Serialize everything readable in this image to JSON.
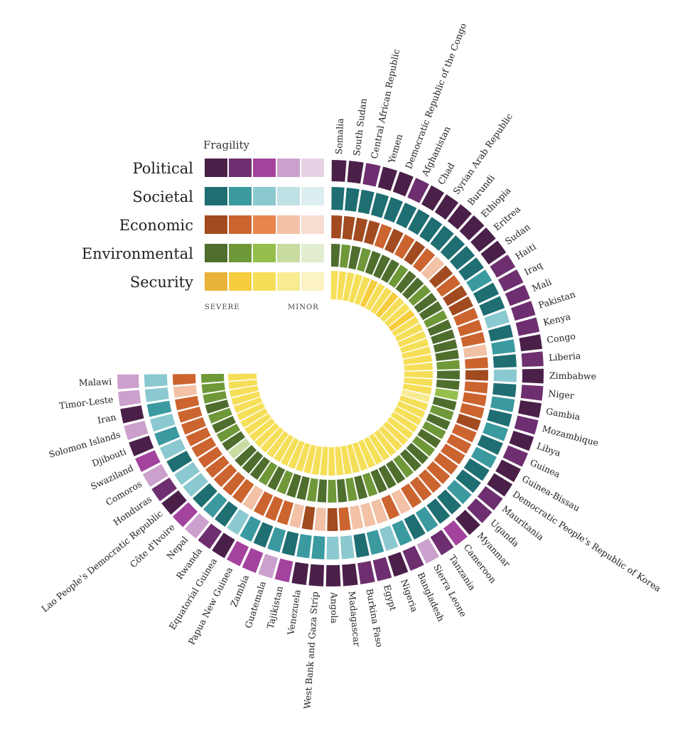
{
  "legend": {
    "title": "Fragility",
    "severe_label": "SEVERE",
    "minor_label": "MINOR",
    "rows": [
      {
        "name": "Political",
        "colors": [
          "#4a2049",
          "#6e2f70",
          "#a3439d",
          "#cca0cc",
          "#e6d2e5"
        ]
      },
      {
        "name": "Societal",
        "colors": [
          "#1e6e72",
          "#3a9aa0",
          "#8ac9cf",
          "#bfe0e4",
          "#ddeef0"
        ]
      },
      {
        "name": "Economic",
        "colors": [
          "#a24b21",
          "#cc6430",
          "#e8854c",
          "#f2c1a6",
          "#f7ddd0"
        ]
      },
      {
        "name": "Environmental",
        "colors": [
          "#4f6e2e",
          "#6f9838",
          "#94bf4c",
          "#c8dca2",
          "#e2edcf"
        ]
      },
      {
        "name": "Security",
        "colors": [
          "#e8b23b",
          "#f6cd3f",
          "#f6df58",
          "#f9eb92",
          "#fbf3c3"
        ]
      }
    ]
  },
  "chart_data": {
    "type": "radial-heatmap",
    "dimensions": [
      "Political",
      "Societal",
      "Economic",
      "Environmental",
      "Security"
    ],
    "scale": "1 = SEVERE ... 5 = MINOR",
    "countries": [
      {
        "name": "Somalia",
        "levels": [
          1,
          1,
          1,
          1,
          3
        ]
      },
      {
        "name": "South Sudan",
        "levels": [
          1,
          1,
          1,
          2,
          3
        ]
      },
      {
        "name": "Central African Republic",
        "levels": [
          2,
          1,
          1,
          1,
          3
        ]
      },
      {
        "name": "Yemen",
        "levels": [
          1,
          1,
          1,
          2,
          3
        ]
      },
      {
        "name": "Democratic Republic of the Congo",
        "levels": [
          1,
          1,
          2,
          1,
          3
        ]
      },
      {
        "name": "Afghanistan",
        "levels": [
          2,
          1,
          1,
          1,
          2
        ]
      },
      {
        "name": "Chad",
        "levels": [
          1,
          1,
          2,
          1,
          3
        ]
      },
      {
        "name": "Syrian Arab Republic",
        "levels": [
          1,
          1,
          1,
          2,
          3
        ]
      },
      {
        "name": "Burundi",
        "levels": [
          1,
          1,
          2,
          1,
          2
        ]
      },
      {
        "name": "Ethiopia",
        "levels": [
          1,
          1,
          4,
          1,
          3
        ]
      },
      {
        "name": "Eritrea",
        "levels": [
          1,
          1,
          1,
          2,
          3
        ]
      },
      {
        "name": "Sudan",
        "levels": [
          1,
          1,
          2,
          1,
          2
        ]
      },
      {
        "name": "Haiti",
        "levels": [
          2,
          2,
          1,
          1,
          3
        ]
      },
      {
        "name": "Iraq",
        "levels": [
          2,
          1,
          1,
          2,
          3
        ]
      },
      {
        "name": "Mali",
        "levels": [
          2,
          1,
          2,
          1,
          3
        ]
      },
      {
        "name": "Pakistan",
        "levels": [
          2,
          3,
          2,
          1,
          3
        ]
      },
      {
        "name": "Kenya",
        "levels": [
          2,
          1,
          2,
          1,
          3
        ]
      },
      {
        "name": "Congo",
        "levels": [
          1,
          2,
          4,
          1,
          3
        ]
      },
      {
        "name": "Liberia",
        "levels": [
          2,
          1,
          2,
          2,
          3
        ]
      },
      {
        "name": "Zimbabwe",
        "levels": [
          1,
          3,
          1,
          1,
          3
        ]
      },
      {
        "name": "Niger",
        "levels": [
          2,
          1,
          2,
          1,
          3
        ]
      },
      {
        "name": "Gambia",
        "levels": [
          1,
          2,
          2,
          3,
          3
        ]
      },
      {
        "name": "Mozambique",
        "levels": [
          2,
          1,
          2,
          1,
          4
        ]
      },
      {
        "name": "Libya",
        "levels": [
          1,
          2,
          1,
          2,
          3
        ]
      },
      {
        "name": "Guinea",
        "levels": [
          2,
          1,
          2,
          1,
          3
        ]
      },
      {
        "name": "Guinea-Bissau",
        "levels": [
          1,
          2,
          2,
          2,
          3
        ]
      },
      {
        "name": "Democratic People's Republic of Korea",
        "levels": [
          1,
          1,
          2,
          1,
          3
        ]
      },
      {
        "name": "Mauritania",
        "levels": [
          2,
          1,
          2,
          2,
          3
        ]
      },
      {
        "name": "Uganda",
        "levels": [
          2,
          2,
          2,
          1,
          3
        ]
      },
      {
        "name": "Myanmar",
        "levels": [
          1,
          1,
          2,
          1,
          3
        ]
      },
      {
        "name": "Cameroon",
        "levels": [
          3,
          1,
          2,
          2,
          3
        ]
      },
      {
        "name": "Tanzania",
        "levels": [
          2,
          2,
          2,
          1,
          3
        ]
      },
      {
        "name": "Sierra Leone",
        "levels": [
          4,
          1,
          4,
          1,
          3
        ]
      },
      {
        "name": "Bangladesh",
        "levels": [
          2,
          2,
          2,
          1,
          3
        ]
      },
      {
        "name": "Nigeria",
        "levels": [
          1,
          3,
          4,
          2,
          3
        ]
      },
      {
        "name": "Egypt",
        "levels": [
          2,
          2,
          4,
          1,
          3
        ]
      },
      {
        "name": "Burkina Faso",
        "levels": [
          2,
          1,
          4,
          2,
          3
        ]
      },
      {
        "name": "Madagascar",
        "levels": [
          1,
          3,
          2,
          1,
          3
        ]
      },
      {
        "name": "Angola",
        "levels": [
          1,
          3,
          1,
          2,
          3
        ]
      },
      {
        "name": "West Bank and Gaza Strip",
        "levels": [
          1,
          2,
          4,
          1,
          3
        ]
      },
      {
        "name": "Venezuela",
        "levels": [
          1,
          2,
          1,
          2,
          3
        ]
      },
      {
        "name": "Tajikistan",
        "levels": [
          3,
          1,
          4,
          1,
          3
        ]
      },
      {
        "name": "Guatemala",
        "levels": [
          4,
          2,
          2,
          1,
          3
        ]
      },
      {
        "name": "Zambia",
        "levels": [
          3,
          1,
          2,
          2,
          3
        ]
      },
      {
        "name": "Papua New Guinea",
        "levels": [
          3,
          2,
          2,
          1,
          3
        ]
      },
      {
        "name": "Equatorial Guinea",
        "levels": [
          1,
          3,
          4,
          2,
          3
        ]
      },
      {
        "name": "Rwanda",
        "levels": [
          2,
          1,
          2,
          1,
          3
        ]
      },
      {
        "name": "Nepal",
        "levels": [
          4,
          2,
          2,
          1,
          3
        ]
      },
      {
        "name": "Côte d'Ivoire",
        "levels": [
          3,
          1,
          2,
          1,
          3
        ]
      },
      {
        "name": "Lao People's Democratic Republic",
        "levels": [
          1,
          3,
          2,
          4,
          3
        ]
      },
      {
        "name": "Honduras",
        "levels": [
          2,
          3,
          2,
          1,
          3
        ]
      },
      {
        "name": "Comoros",
        "levels": [
          4,
          1,
          2,
          2,
          3
        ]
      },
      {
        "name": "Swaziland",
        "levels": [
          3,
          3,
          2,
          1,
          3
        ]
      },
      {
        "name": "Djibouti",
        "levels": [
          1,
          2,
          2,
          2,
          3
        ]
      },
      {
        "name": "Solomon Islands",
        "levels": [
          4,
          3,
          2,
          1,
          3
        ]
      },
      {
        "name": "Iran",
        "levels": [
          1,
          2,
          2,
          2,
          3
        ]
      },
      {
        "name": "Timor-Leste",
        "levels": [
          4,
          3,
          4,
          2,
          3
        ]
      },
      {
        "name": "Malawi",
        "levels": [
          4,
          3,
          2,
          2,
          3
        ]
      }
    ]
  }
}
